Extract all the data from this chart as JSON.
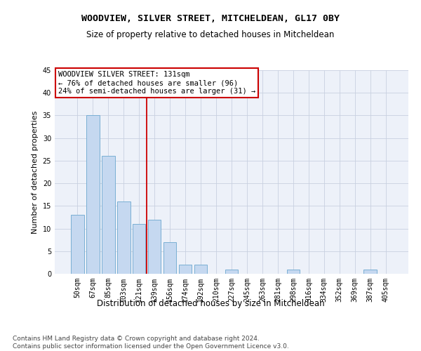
{
  "title": "WOODVIEW, SILVER STREET, MITCHELDEAN, GL17 0BY",
  "subtitle": "Size of property relative to detached houses in Mitcheldean",
  "xlabel": "Distribution of detached houses by size in Mitcheldean",
  "ylabel": "Number of detached properties",
  "categories": [
    "50sqm",
    "67sqm",
    "85sqm",
    "103sqm",
    "121sqm",
    "139sqm",
    "156sqm",
    "174sqm",
    "192sqm",
    "210sqm",
    "227sqm",
    "245sqm",
    "263sqm",
    "281sqm",
    "298sqm",
    "316sqm",
    "334sqm",
    "352sqm",
    "369sqm",
    "387sqm",
    "405sqm"
  ],
  "values": [
    13,
    35,
    26,
    16,
    11,
    12,
    7,
    2,
    2,
    0,
    1,
    0,
    0,
    0,
    1,
    0,
    0,
    0,
    0,
    1,
    0
  ],
  "bar_color": "#c5d8f0",
  "bar_edge_color": "#7aafd4",
  "vline_x": 4.5,
  "vline_color": "#cc0000",
  "annotation_line1": "WOODVIEW SILVER STREET: 131sqm",
  "annotation_line2": "← 76% of detached houses are smaller (96)",
  "annotation_line3": "24% of semi-detached houses are larger (31) →",
  "annotation_box_color": "#cc0000",
  "ylim": [
    0,
    45
  ],
  "yticks": [
    0,
    5,
    10,
    15,
    20,
    25,
    30,
    35,
    40,
    45
  ],
  "grid_color": "#c8d0e0",
  "bg_color": "#edf1f9",
  "footer_line1": "Contains HM Land Registry data © Crown copyright and database right 2024.",
  "footer_line2": "Contains public sector information licensed under the Open Government Licence v3.0.",
  "title_fontsize": 9.5,
  "subtitle_fontsize": 8.5,
  "xlabel_fontsize": 8.5,
  "ylabel_fontsize": 8,
  "tick_fontsize": 7,
  "annotation_fontsize": 7.5,
  "footer_fontsize": 6.5
}
